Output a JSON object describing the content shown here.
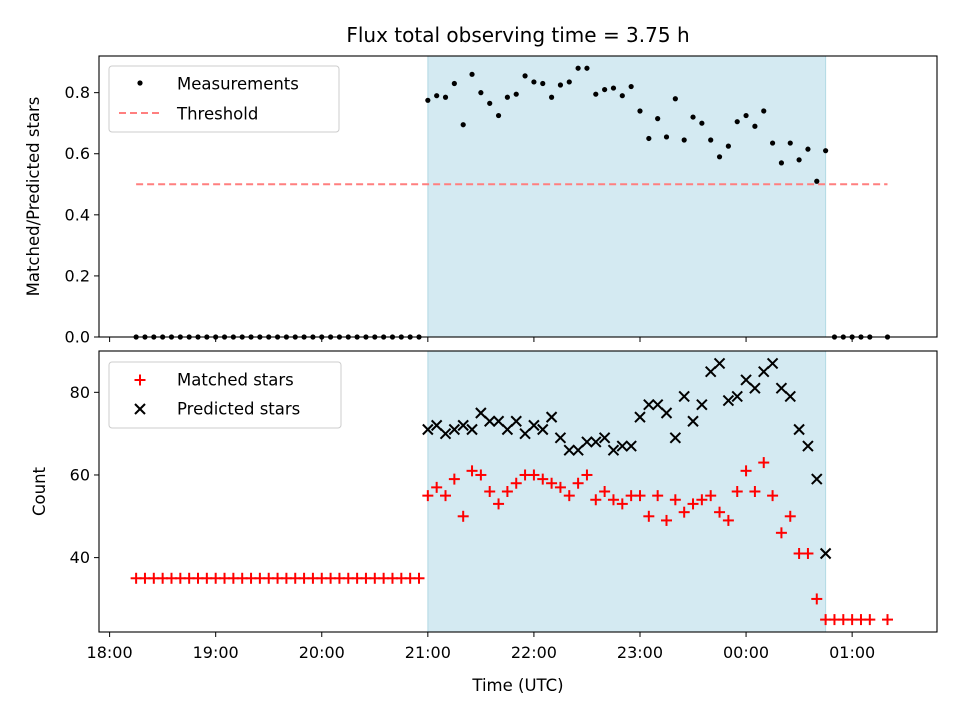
{
  "colors": {
    "shade": "#add8e6",
    "threshold": "#ff7f7f",
    "measurements": "#000000",
    "matched": "#ff0000",
    "predicted": "#000000"
  },
  "chart_data": [
    {
      "type": "scatter",
      "title": "Flux total observing time = 3.75 h",
      "ylabel": "Matched/Predicted stars",
      "xlabel": "",
      "x_unit": "time (UTC)",
      "xlim": [
        "17:54",
        "01:48"
      ],
      "ylim": [
        0,
        0.92
      ],
      "yticks": [
        "0.0",
        "0.2",
        "0.4",
        "0.6",
        "0.8"
      ],
      "ytick_values": [
        0,
        0.2,
        0.4,
        0.6,
        0.8
      ],
      "shaded_span": [
        "21:00",
        "00:45"
      ],
      "legend": {
        "placement": "upper left",
        "entries": [
          "Measurements",
          "Threshold"
        ]
      },
      "threshold": {
        "name": "Threshold",
        "value": 0.5,
        "x_start": "18:15",
        "x_end": "01:20",
        "style": "dashed"
      },
      "series": [
        {
          "name": "Measurements",
          "marker": "dot",
          "x": [
            "18:15",
            "18:20",
            "18:25",
            "18:30",
            "18:35",
            "18:40",
            "18:45",
            "18:50",
            "18:55",
            "19:00",
            "19:05",
            "19:10",
            "19:15",
            "19:20",
            "19:25",
            "19:30",
            "19:35",
            "19:40",
            "19:45",
            "19:50",
            "19:55",
            "20:00",
            "20:05",
            "20:10",
            "20:15",
            "20:20",
            "20:25",
            "20:30",
            "20:35",
            "20:40",
            "20:45",
            "20:50",
            "20:55",
            "21:00",
            "21:05",
            "21:10",
            "21:15",
            "21:20",
            "21:25",
            "21:30",
            "21:35",
            "21:40",
            "21:45",
            "21:50",
            "21:55",
            "22:00",
            "22:05",
            "22:10",
            "22:15",
            "22:20",
            "22:25",
            "22:30",
            "22:35",
            "22:40",
            "22:45",
            "22:50",
            "22:55",
            "23:00",
            "23:05",
            "23:10",
            "23:15",
            "23:20",
            "23:25",
            "23:30",
            "23:35",
            "23:40",
            "23:45",
            "23:50",
            "23:55",
            "00:00",
            "00:05",
            "00:10",
            "00:15",
            "00:20",
            "00:25",
            "00:30",
            "00:35",
            "00:40",
            "00:45",
            "00:50",
            "00:55",
            "01:00",
            "01:05",
            "01:10",
            "01:20"
          ],
          "y": [
            0,
            0,
            0,
            0,
            0,
            0,
            0,
            0,
            0,
            0,
            0,
            0,
            0,
            0,
            0,
            0,
            0,
            0,
            0,
            0,
            0,
            0,
            0,
            0,
            0,
            0,
            0,
            0,
            0,
            0,
            0,
            0,
            0,
            0.775,
            0.79,
            0.785,
            0.83,
            0.695,
            0.86,
            0.8,
            0.765,
            0.725,
            0.785,
            0.795,
            0.855,
            0.835,
            0.83,
            0.785,
            0.825,
            0.835,
            0.88,
            0.88,
            0.795,
            0.81,
            0.815,
            0.79,
            0.82,
            0.74,
            0.65,
            0.715,
            0.655,
            0.78,
            0.645,
            0.72,
            0.7,
            0.645,
            0.59,
            0.625,
            0.705,
            0.725,
            0.69,
            0.74,
            0.635,
            0.57,
            0.635,
            0.58,
            0.615,
            0.51,
            0.61,
            0,
            0,
            0,
            0,
            0,
            0
          ]
        }
      ]
    },
    {
      "type": "scatter",
      "xlabel": "Time (UTC)",
      "ylabel": "Count",
      "xlim": [
        "17:54",
        "01:48"
      ],
      "ylim": [
        22,
        90
      ],
      "xticks": [
        "18:00",
        "19:00",
        "20:00",
        "21:00",
        "22:00",
        "23:00",
        "00:00",
        "01:00"
      ],
      "yticks": [
        "40",
        "60",
        "80"
      ],
      "ytick_values": [
        40,
        60,
        80
      ],
      "shaded_span": [
        "21:00",
        "00:45"
      ],
      "legend": {
        "placement": "upper left",
        "entries": [
          "Matched stars",
          "Predicted stars"
        ]
      },
      "series": [
        {
          "name": "Matched stars",
          "marker": "plus",
          "x": [
            "18:15",
            "18:20",
            "18:25",
            "18:30",
            "18:35",
            "18:40",
            "18:45",
            "18:50",
            "18:55",
            "19:00",
            "19:05",
            "19:10",
            "19:15",
            "19:20",
            "19:25",
            "19:30",
            "19:35",
            "19:40",
            "19:45",
            "19:50",
            "19:55",
            "20:00",
            "20:05",
            "20:10",
            "20:15",
            "20:20",
            "20:25",
            "20:30",
            "20:35",
            "20:40",
            "20:45",
            "20:50",
            "20:55",
            "21:00",
            "21:05",
            "21:10",
            "21:15",
            "21:20",
            "21:25",
            "21:30",
            "21:35",
            "21:40",
            "21:45",
            "21:50",
            "21:55",
            "22:00",
            "22:05",
            "22:10",
            "22:15",
            "22:20",
            "22:25",
            "22:30",
            "22:35",
            "22:40",
            "22:45",
            "22:50",
            "22:55",
            "23:00",
            "23:05",
            "23:10",
            "23:15",
            "23:20",
            "23:25",
            "23:30",
            "23:35",
            "23:40",
            "23:45",
            "23:50",
            "23:55",
            "00:00",
            "00:05",
            "00:10",
            "00:15",
            "00:20",
            "00:25",
            "00:30",
            "00:35",
            "00:40",
            "00:45",
            "00:50",
            "00:55",
            "01:00",
            "01:05",
            "01:10",
            "01:20"
          ],
          "y": [
            35,
            35,
            35,
            35,
            35,
            35,
            35,
            35,
            35,
            35,
            35,
            35,
            35,
            35,
            35,
            35,
            35,
            35,
            35,
            35,
            35,
            35,
            35,
            35,
            35,
            35,
            35,
            35,
            35,
            35,
            35,
            35,
            35,
            55,
            57,
            55,
            59,
            50,
            61,
            60,
            56,
            53,
            56,
            58,
            60,
            60,
            59,
            58,
            57,
            55,
            58,
            60,
            54,
            56,
            54,
            53,
            55,
            55,
            50,
            55,
            49,
            54,
            51,
            53,
            54,
            55,
            51,
            49,
            56,
            61,
            56,
            63,
            55,
            46,
            50,
            41,
            41,
            30,
            25,
            25,
            25,
            25,
            25,
            25,
            25
          ]
        },
        {
          "name": "Predicted stars",
          "marker": "x",
          "x": [
            "21:00",
            "21:05",
            "21:10",
            "21:15",
            "21:20",
            "21:25",
            "21:30",
            "21:35",
            "21:40",
            "21:45",
            "21:50",
            "21:55",
            "22:00",
            "22:05",
            "22:10",
            "22:15",
            "22:20",
            "22:25",
            "22:30",
            "22:35",
            "22:40",
            "22:45",
            "22:50",
            "22:55",
            "23:00",
            "23:05",
            "23:10",
            "23:15",
            "23:20",
            "23:25",
            "23:30",
            "23:35",
            "23:40",
            "23:45",
            "23:50",
            "23:55",
            "00:00",
            "00:05",
            "00:10",
            "00:15",
            "00:20",
            "00:25",
            "00:30",
            "00:35",
            "00:40",
            "00:45"
          ],
          "y": [
            71,
            72,
            70,
            71,
            72,
            71,
            75,
            73,
            73,
            71,
            73,
            70,
            72,
            71,
            74,
            69,
            66,
            66,
            68,
            68,
            69,
            66,
            67,
            67,
            74,
            77,
            77,
            75,
            69,
            79,
            73,
            77,
            85,
            87,
            78,
            79,
            83,
            81,
            85,
            87,
            81,
            79,
            71,
            67,
            59,
            41
          ]
        }
      ]
    }
  ]
}
